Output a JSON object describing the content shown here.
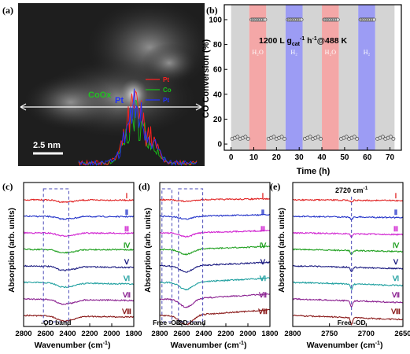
{
  "chart_data": [
    {
      "panel": "a",
      "type": "other",
      "description_labels": {
        "panel_label": "(a)",
        "region_label": "CoOx",
        "particle_label": "Pt",
        "scale_bar": "2.5 nm",
        "legend": [
          "Pt",
          "Co",
          "Pt"
        ]
      },
      "colors": {
        "Pt_red": "#ff2020",
        "Co_green": "#18c018",
        "Pt_blue": "#2030ff"
      }
    },
    {
      "panel": "b",
      "type": "scatter",
      "panel_label": "(b)",
      "xlabel": "Time (h)",
      "ylabel": "CO Conversion (%)",
      "annotation": "1200 L gcat-1 h-1@488 K",
      "xlim": [
        -3,
        75
      ],
      "ylim": [
        -5,
        112
      ],
      "xticks": [
        "0",
        "10",
        "20",
        "30",
        "40",
        "50",
        "60",
        "70"
      ],
      "yticks": [
        "0",
        "20",
        "40",
        "60",
        "80",
        "100"
      ],
      "bands": [
        {
          "x0": 0,
          "x1": 8,
          "label": "",
          "color": "#d4d4d4"
        },
        {
          "x0": 8,
          "x1": 15.5,
          "label": "H2O",
          "color": "#f4a7a7"
        },
        {
          "x0": 15.5,
          "x1": 24,
          "label": "",
          "color": "#d4d4d4"
        },
        {
          "x0": 24,
          "x1": 31.5,
          "label": "H2",
          "color": "#9c9cf4"
        },
        {
          "x0": 31.5,
          "x1": 40,
          "label": "",
          "color": "#d4d4d4"
        },
        {
          "x0": 40,
          "x1": 47.5,
          "label": "H2O",
          "color": "#f4a7a7"
        },
        {
          "x0": 47.5,
          "x1": 56,
          "label": "",
          "color": "#d4d4d4"
        },
        {
          "x0": 56,
          "x1": 63.5,
          "label": "H2",
          "color": "#9c9cf4"
        },
        {
          "x0": 63.5,
          "x1": 72,
          "label": "",
          "color": "#d4d4d4"
        }
      ],
      "band_labels": [
        "H₂O",
        "H₂",
        "H₂O",
        "H₂"
      ],
      "series": [
        {
          "segments": [
            {
              "x0": 0.5,
              "x1": 7.5,
              "y": 5
            },
            {
              "x0": 9,
              "x1": 15,
              "y": 100
            },
            {
              "x0": 16.5,
              "x1": 23.5,
              "y": 5
            },
            {
              "x0": 25,
              "x1": 31,
              "y": 100
            },
            {
              "x0": 32.5,
              "x1": 39.5,
              "y": 5
            },
            {
              "x0": 41,
              "x1": 47,
              "y": 100
            },
            {
              "x0": 48.5,
              "x1": 55.5,
              "y": 5
            },
            {
              "x0": 57,
              "x1": 63,
              "y": 100
            },
            {
              "x0": 64.5,
              "x1": 71.5,
              "y": 5
            }
          ]
        }
      ]
    },
    {
      "panel": "c",
      "type": "line",
      "panel_label": "(c)",
      "xlabel": "Wavenumber (cm-1)",
      "ylabel": "Absorption (arb. units)",
      "xlim": [
        2800,
        1800
      ],
      "xticks": [
        "2800",
        "2600",
        "2400",
        "2200",
        "2000",
        "1800"
      ],
      "annotation": "-OD band",
      "band_range": [
        2620,
        2390
      ],
      "series_names": [
        "I",
        "II",
        "III",
        "IV",
        "V",
        "VI",
        "VII",
        "VIII"
      ]
    },
    {
      "panel": "d",
      "type": "line",
      "panel_label": "(d)",
      "xlabel": "Wavenumber (cm-1)",
      "ylabel": "Absorption (arb. units)",
      "xlim": [
        2800,
        1800
      ],
      "xticks": [
        "2800",
        "2600",
        "2400",
        "2200",
        "2000",
        "1800"
      ],
      "annotations": [
        "Free -OD",
        "-OD band"
      ],
      "band_ranges": [
        [
          2780,
          2690
        ],
        [
          2630,
          2410
        ]
      ],
      "series_names": [
        "I",
        "II",
        "III",
        "IV",
        "V",
        "VI",
        "VII",
        "VIII"
      ]
    },
    {
      "panel": "e",
      "type": "line",
      "panel_label": "(e)",
      "xlabel": "Wavenumber (cm-1)",
      "ylabel": "Absorption (arb. units)",
      "xlim": [
        2800,
        2650
      ],
      "xticks": [
        "2800",
        "2750",
        "2700",
        "2650"
      ],
      "annotations": [
        "2720 cm-1",
        "Free -OD"
      ],
      "marker_x": 2720,
      "series_names": [
        "I",
        "II",
        "III",
        "IV",
        "V",
        "VI",
        "VII",
        "VIII"
      ]
    }
  ],
  "series_colors": [
    "#e02020",
    "#2030c8",
    "#d020d0",
    "#20a020",
    "#1a1a80",
    "#20a0a0",
    "#8a2090",
    "#8a1a1a"
  ],
  "ui": {
    "a_label": "(a)",
    "b_label": "(b)",
    "c_label": "(c)",
    "d_label": "(d)",
    "e_label": "(e)",
    "scale": "2.5 nm",
    "coox": "CoOx",
    "pt": "Pt",
    "leg_pt1": "Pt",
    "leg_co": "Co",
    "leg_pt2": "Pt",
    "b_xlabel": "Time (h)",
    "b_ylabel": "CO Conversion (%)",
    "b_annot": "1200 L gcat-1 h-1@488 K",
    "ylabel_ir": "Absorption (arb. units)",
    "xlabel_ir": "Wavenumber (cm-1)",
    "c_band": "-OD band",
    "d_free": "Free -OD",
    "d_band": "-OD band",
    "e_peak": "2720 cm-1",
    "e_free": "Free -OD"
  }
}
